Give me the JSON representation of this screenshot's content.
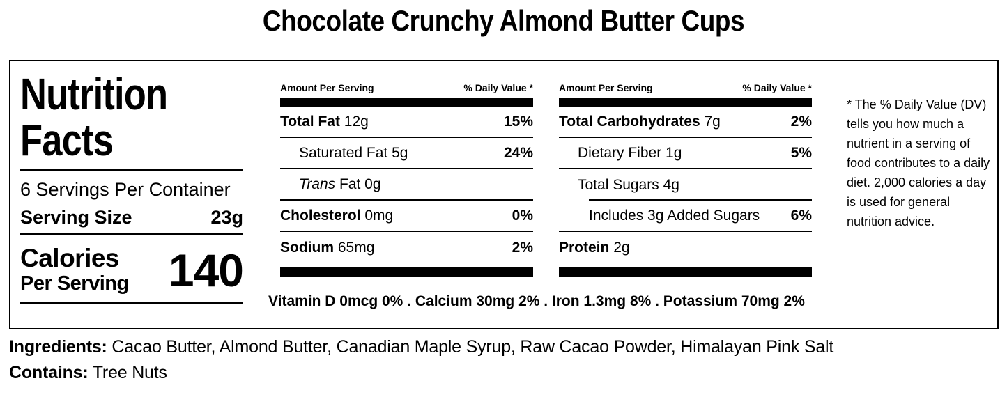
{
  "page_title": "Chocolate Crunchy Almond Butter Cups",
  "colors": {
    "text": "#000000",
    "background": "#ffffff"
  },
  "nutrition_label": {
    "heading": "Nutrition Facts",
    "servings_per_container": "6 Servings Per Container",
    "serving_size": {
      "label": "Serving Size",
      "value": "23g"
    },
    "calories": {
      "label": "Calories",
      "sublabel": "Per Serving",
      "value": "140"
    },
    "column_left": {
      "header_amount": "Amount Per Serving",
      "header_dv": "% Daily Value *",
      "rows": [
        {
          "name": "Total Fat",
          "amount": "12g",
          "dv": "15%"
        },
        {
          "name": "Saturated Fat",
          "amount": "5g",
          "dv": "24%"
        },
        {
          "name_italic": "Trans",
          "name": "Fat",
          "amount": "0g",
          "dv": ""
        },
        {
          "name": "Cholesterol",
          "amount": "0mg",
          "dv": "0%"
        },
        {
          "name": "Sodium",
          "amount": "65mg",
          "dv": "2%"
        }
      ]
    },
    "column_right": {
      "header_amount": "Amount Per Serving",
      "header_dv": "% Daily Value *",
      "rows": [
        {
          "name": "Total Carbohydrates",
          "amount": "7g",
          "dv": "2%"
        },
        {
          "name": "Dietary Fiber",
          "amount": "1g",
          "dv": "5%"
        },
        {
          "name": "Total Sugars",
          "amount": "4g",
          "dv": ""
        },
        {
          "name": "Includes 3g Added Sugars",
          "amount": "",
          "dv": "6%"
        },
        {
          "name": "Protein",
          "amount": "2g",
          "dv": ""
        }
      ]
    },
    "micronutrients": "Vitamin D 0mcg 0% . Calcium 30mg 2% . Iron 1.3mg 8% . Potassium 70mg 2%",
    "footnote": "* The % Daily Value (DV) tells you how much a nutrient in a serving of food contributes to a daily diet. 2,000 calories a day is used for general nutrition advice."
  },
  "ingredients": {
    "label": "Ingredients:",
    "value": "Cacao Butter, Almond Butter, Canadian Maple Syrup, Raw Cacao Powder, Himalayan Pink Salt"
  },
  "contains": {
    "label": "Contains:",
    "value": "Tree Nuts"
  }
}
